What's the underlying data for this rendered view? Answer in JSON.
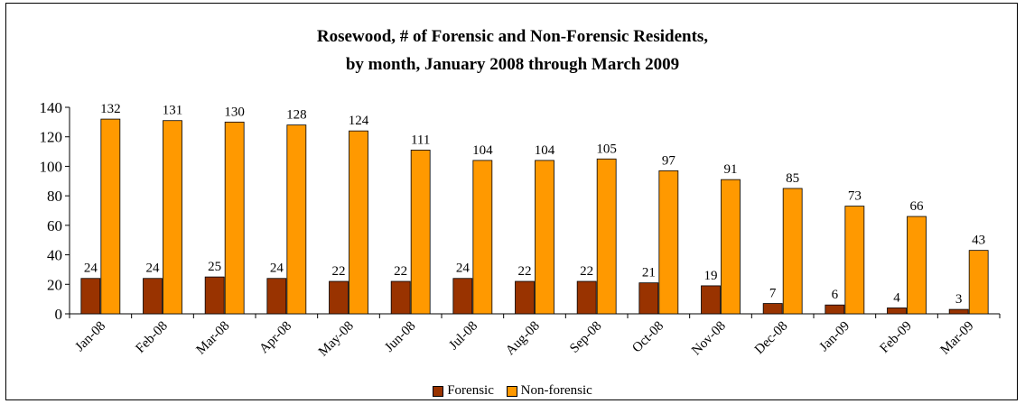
{
  "chart_data": {
    "type": "bar",
    "title": "Rosewood, # of Forensic and Non-Forensic Residents,",
    "subtitle": "by month, January 2008 through March 2009",
    "categories": [
      "Jan-08",
      "Feb-08",
      "Mar-08",
      "Apr-08",
      "May-08",
      "Jun-08",
      "Jul-08",
      "Aug-08",
      "Sep-08",
      "Oct-08",
      "Nov-08",
      "Dec-08",
      "Jan-09",
      "Feb-09",
      "Mar-09"
    ],
    "series": [
      {
        "name": "Forensic",
        "color": "#993300",
        "values": [
          24,
          24,
          25,
          24,
          22,
          22,
          24,
          22,
          22,
          21,
          19,
          7,
          6,
          4,
          3
        ]
      },
      {
        "name": "Non-forensic",
        "color": "#FF9900",
        "values": [
          132,
          131,
          130,
          128,
          124,
          111,
          104,
          104,
          105,
          97,
          91,
          85,
          73,
          66,
          43
        ]
      }
    ],
    "ylim": [
      0,
      140
    ],
    "yticks": [
      0,
      20,
      40,
      60,
      80,
      100,
      120,
      140
    ],
    "grid": false,
    "legend_position": "bottom"
  }
}
